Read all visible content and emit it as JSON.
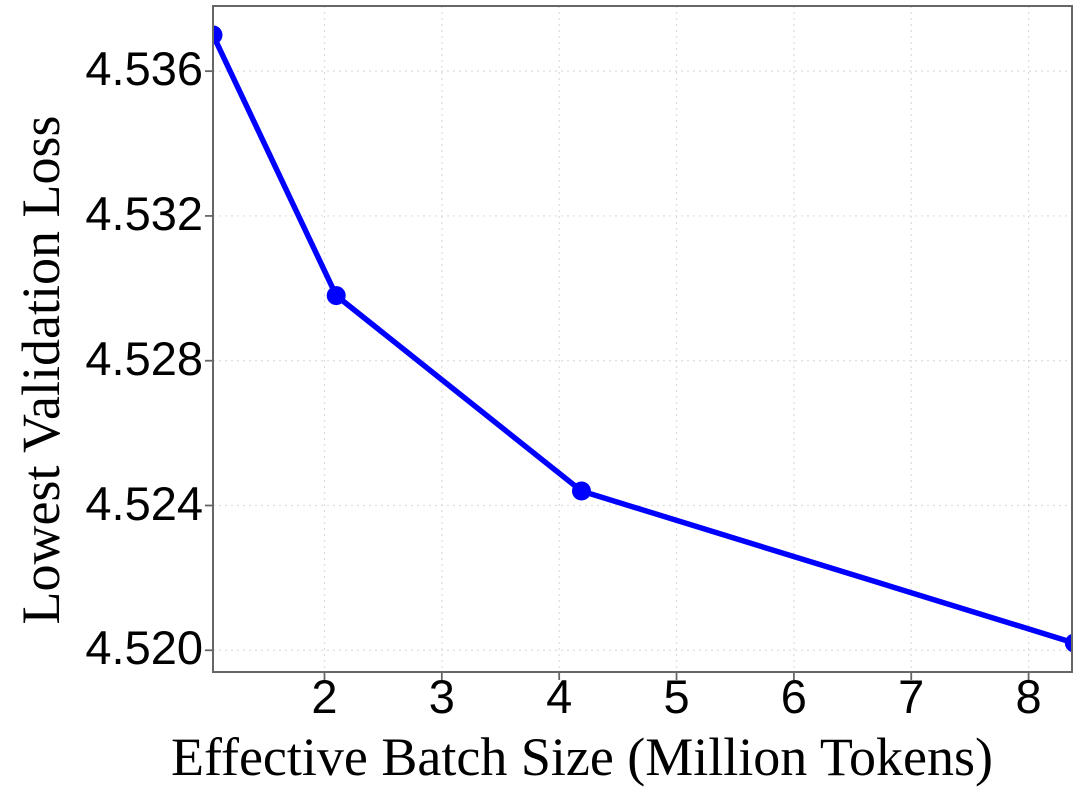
{
  "chart_data": {
    "type": "line",
    "title": "",
    "xlabel": "Effective Batch Size (Million Tokens)",
    "ylabel": "Lowest Validation Loss",
    "series": [
      {
        "name": "lowest-validation-loss",
        "x": [
          1.05,
          2.1,
          4.19,
          8.39
        ],
        "y": [
          4.537,
          4.5298,
          4.5244,
          4.5202
        ]
      }
    ],
    "xlim": [
      1.05,
      8.37
    ],
    "ylim": [
      4.5194,
      4.5378
    ],
    "xticks": {
      "values": [
        2,
        3,
        4,
        5,
        6,
        7,
        8
      ],
      "labels": [
        "2",
        "3",
        "4",
        "5",
        "6",
        "7",
        "8"
      ]
    },
    "yticks": {
      "values": [
        4.52,
        4.524,
        4.528,
        4.532,
        4.536
      ],
      "labels": [
        "4.520",
        "4.524",
        "4.528",
        "4.532",
        "4.536"
      ]
    },
    "grid": true,
    "legend": "none",
    "marker": "circle",
    "line_color": "#0000ff",
    "marker_color": "#0000ff",
    "grid_color": "#dcdcdc",
    "axis_color": "#666666",
    "text_color": "#000000"
  }
}
